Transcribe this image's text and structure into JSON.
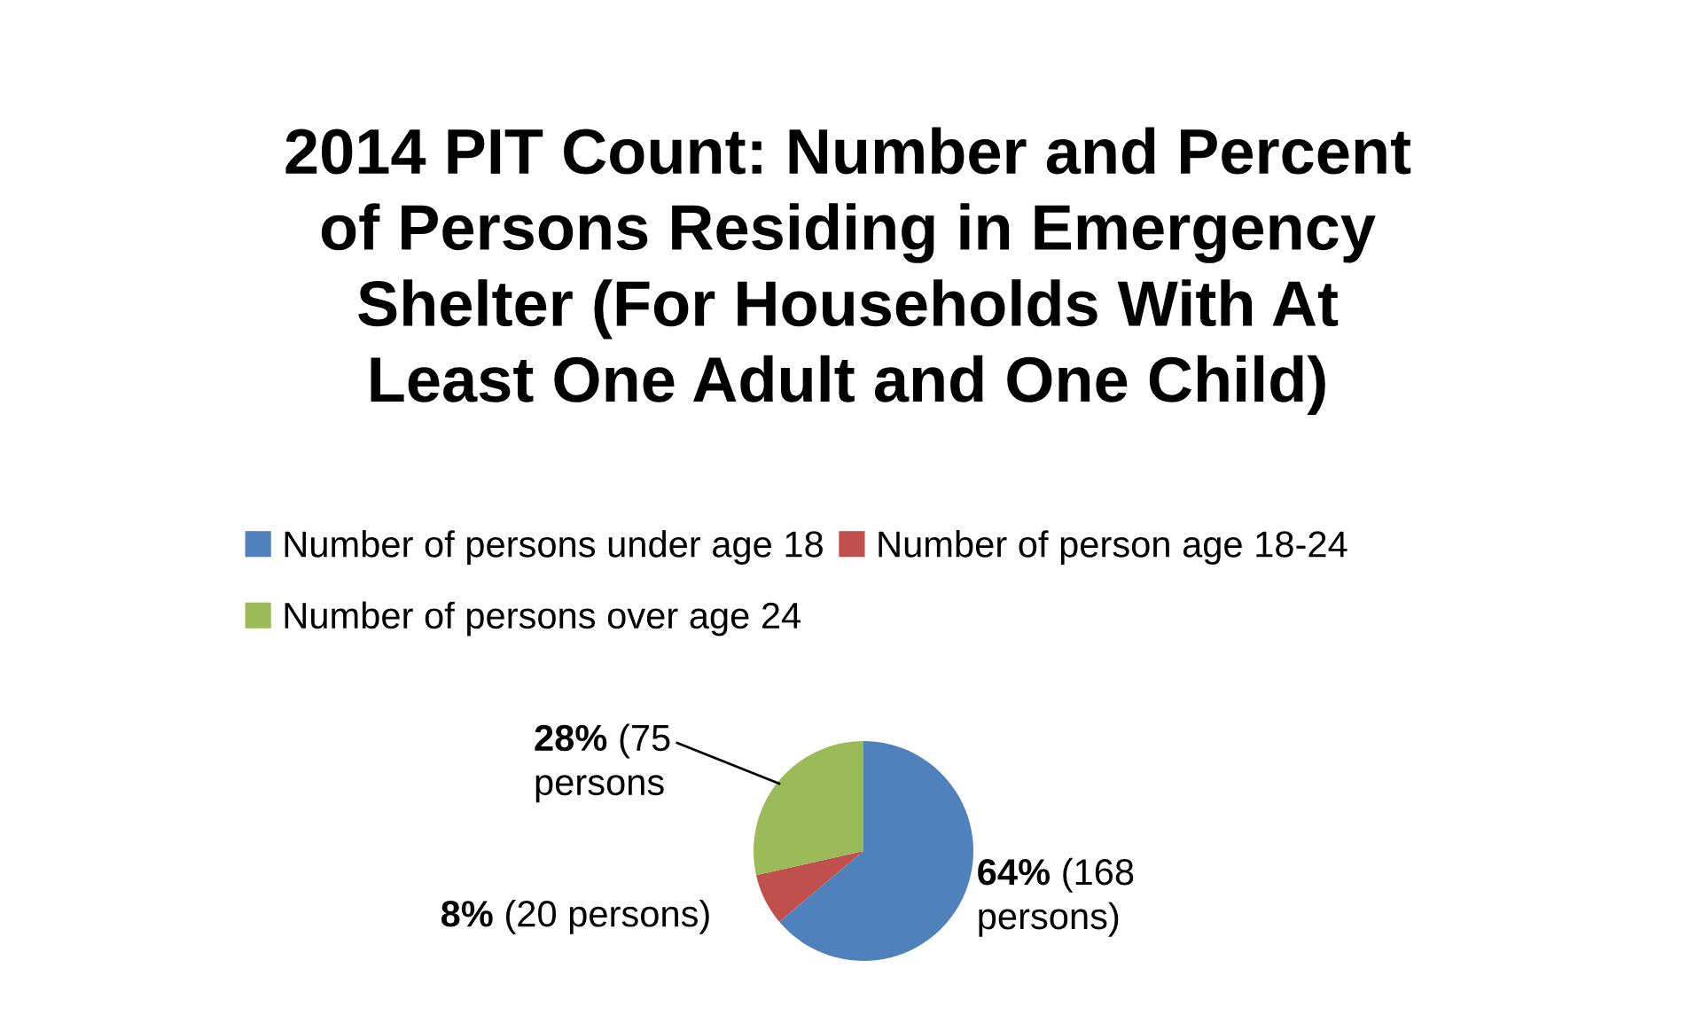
{
  "chart_data": {
    "type": "pie",
    "title": "2014 PIT Count: Number and Percent\nof Persons Residing in Emergency\nShelter (For Households With At\nLeast One Adult and One Child)",
    "categories": [
      "Number of persons under age 18",
      "Number of person age 18-24",
      "Number of persons over age 24"
    ],
    "values": [
      168,
      20,
      75
    ],
    "colors": [
      "#4f81bd",
      "#c0504d",
      "#9bbb59"
    ],
    "value_labels": [
      "64% (168\npersons)",
      "8% (20 persons)",
      "28% (75\npersons"
    ],
    "legend": "top"
  }
}
